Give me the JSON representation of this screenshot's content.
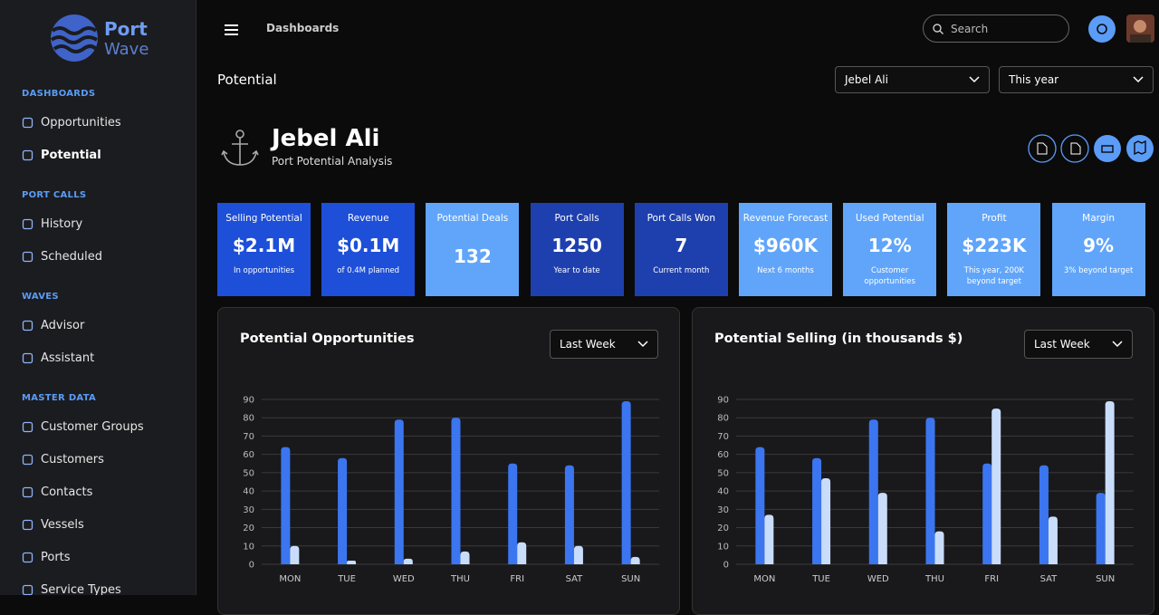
{
  "sidebar": {
    "logo": {
      "line1": "Port",
      "line2": "Wave"
    },
    "sections": [
      {
        "title": "DASHBOARDS",
        "items": [
          "Opportunities",
          "Potential"
        ]
      },
      {
        "title": "PORT CALLS",
        "items": [
          "History",
          "Scheduled"
        ]
      },
      {
        "title": "WAVES",
        "items": [
          "Advisor",
          "Assistant"
        ]
      },
      {
        "title": "MASTER DATA",
        "items": [
          "Customer Groups",
          "Customers",
          "Contacts",
          "Vessels",
          "Ports",
          "Service Types"
        ]
      }
    ]
  },
  "header": {
    "breadcrumb": "Dashboards",
    "search_placeholder": "Search"
  },
  "page": {
    "title": "Potential",
    "filters": [
      "Jebel Ali",
      "This year"
    ],
    "port_name": "Jebel Ali",
    "subtitle": "Port Potential Analysis"
  },
  "kpis": [
    {
      "label": "Selling Potential",
      "value": "$2.1M",
      "note": "In opportunities"
    },
    {
      "label": "Revenue",
      "value": "$0.1M",
      "note": "of 0.4M planned"
    },
    {
      "label": "Potential Deals",
      "value": 132
    },
    {
      "label": "Port Calls",
      "value": 1250,
      "note": "Year to date"
    },
    {
      "label": "Port Calls Won",
      "value": 7,
      "note": "Current month"
    },
    {
      "label": "Revenue Forecast",
      "value": "$960K",
      "note": "Next 6 months"
    },
    {
      "label": "Used Potential",
      "value": "12%",
      "note": "Customer opportunities"
    },
    {
      "label": "Profit",
      "value": "$223K",
      "note": "This year, 200K beyond target"
    },
    {
      "label": "Margin",
      "value": "9%",
      "note": "3% beyond target"
    }
  ],
  "chart_data": [
    {
      "type": "bar",
      "title": "Potential Opportunities",
      "dropdown": "Last Week",
      "categories": [
        "MON",
        "TUE",
        "WED",
        "THU",
        "FRI",
        "SAT",
        "SUN"
      ],
      "series": [
        {
          "color": "#3b76f0",
          "values": [
            64,
            58,
            79,
            80,
            55,
            54,
            89
          ]
        },
        {
          "color": "#c9ddfb",
          "values": [
            10,
            2,
            3,
            7,
            12,
            10,
            4
          ]
        }
      ],
      "ylim": [
        0,
        90
      ],
      "yticks": [
        0,
        10,
        20,
        30,
        40,
        50,
        60,
        70,
        80,
        90
      ],
      "grid": true
    },
    {
      "type": "bar",
      "title": "Potential Selling (in thousands $)",
      "dropdown": "Last Week",
      "categories": [
        "MON",
        "TUE",
        "WED",
        "THU",
        "FRI",
        "SAT",
        "SUN"
      ],
      "series": [
        {
          "color": "#3b76f0",
          "values": [
            64,
            58,
            79,
            80,
            55,
            54,
            39
          ]
        },
        {
          "color": "#c9ddfb",
          "values": [
            27,
            47,
            39,
            18,
            85,
            26,
            89
          ]
        }
      ],
      "ylim": [
        0,
        90
      ],
      "yticks": [
        0,
        10,
        20,
        30,
        40,
        50,
        60,
        70,
        80,
        90
      ],
      "grid": true
    }
  ]
}
